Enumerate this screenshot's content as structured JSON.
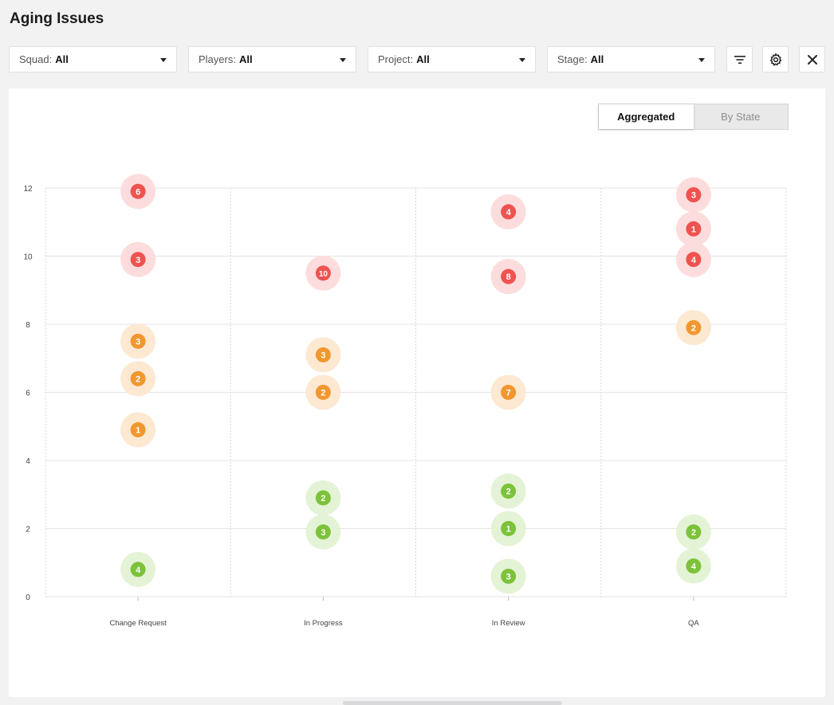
{
  "page": {
    "title": "Aging Issues"
  },
  "filters": [
    {
      "label": "Squad:",
      "value": "All"
    },
    {
      "label": "Players:",
      "value": "All"
    },
    {
      "label": "Project:",
      "value": "All"
    },
    {
      "label": "Stage:",
      "value": "All"
    }
  ],
  "toolbar": {
    "filter_icon": "filter-icon",
    "settings_icon": "gear-icon",
    "close_icon": "close-icon"
  },
  "view_toggle": {
    "options": [
      "Aggregated",
      "By State"
    ],
    "selected": "Aggregated"
  },
  "colors": {
    "red": "#ef5350",
    "red_halo": "#fcdcdc",
    "orange": "#f0982f",
    "orange_halo": "#fde8d2",
    "green": "#7cc23a",
    "green_halo": "#e4f3d6",
    "grid": "#e3e3e3"
  },
  "chart_data": {
    "type": "scatter",
    "categories": [
      "Change Request",
      "In Progress",
      "In Review",
      "QA"
    ],
    "ylim": [
      0,
      12
    ],
    "yticks": [
      "0",
      "2",
      "4",
      "6",
      "8",
      "10",
      "12"
    ],
    "grid": true,
    "points": [
      {
        "category": "Change Request",
        "y": 11.9,
        "count": "6",
        "level": "red"
      },
      {
        "category": "Change Request",
        "y": 9.9,
        "count": "3",
        "level": "red"
      },
      {
        "category": "Change Request",
        "y": 7.5,
        "count": "3",
        "level": "orange"
      },
      {
        "category": "Change Request",
        "y": 6.4,
        "count": "2",
        "level": "orange"
      },
      {
        "category": "Change Request",
        "y": 4.9,
        "count": "1",
        "level": "orange"
      },
      {
        "category": "Change Request",
        "y": 0.8,
        "count": "4",
        "level": "green"
      },
      {
        "category": "In Progress",
        "y": 9.5,
        "count": "10",
        "level": "red"
      },
      {
        "category": "In Progress",
        "y": 7.1,
        "count": "3",
        "level": "orange"
      },
      {
        "category": "In Progress",
        "y": 6.0,
        "count": "2",
        "level": "orange"
      },
      {
        "category": "In Progress",
        "y": 2.9,
        "count": "2",
        "level": "green"
      },
      {
        "category": "In Progress",
        "y": 1.9,
        "count": "3",
        "level": "green"
      },
      {
        "category": "In Review",
        "y": 11.3,
        "count": "4",
        "level": "red"
      },
      {
        "category": "In Review",
        "y": 9.4,
        "count": "8",
        "level": "red"
      },
      {
        "category": "In Review",
        "y": 6.0,
        "count": "7",
        "level": "orange"
      },
      {
        "category": "In Review",
        "y": 3.1,
        "count": "2",
        "level": "green"
      },
      {
        "category": "In Review",
        "y": 2.0,
        "count": "1",
        "level": "green"
      },
      {
        "category": "In Review",
        "y": 0.6,
        "count": "3",
        "level": "green"
      },
      {
        "category": "QA",
        "y": 11.8,
        "count": "3",
        "level": "red"
      },
      {
        "category": "QA",
        "y": 10.8,
        "count": "1",
        "level": "red"
      },
      {
        "category": "QA",
        "y": 9.9,
        "count": "4",
        "level": "red"
      },
      {
        "category": "QA",
        "y": 7.9,
        "count": "2",
        "level": "orange"
      },
      {
        "category": "QA",
        "y": 1.9,
        "count": "2",
        "level": "green"
      },
      {
        "category": "QA",
        "y": 0.9,
        "count": "4",
        "level": "green"
      }
    ]
  }
}
